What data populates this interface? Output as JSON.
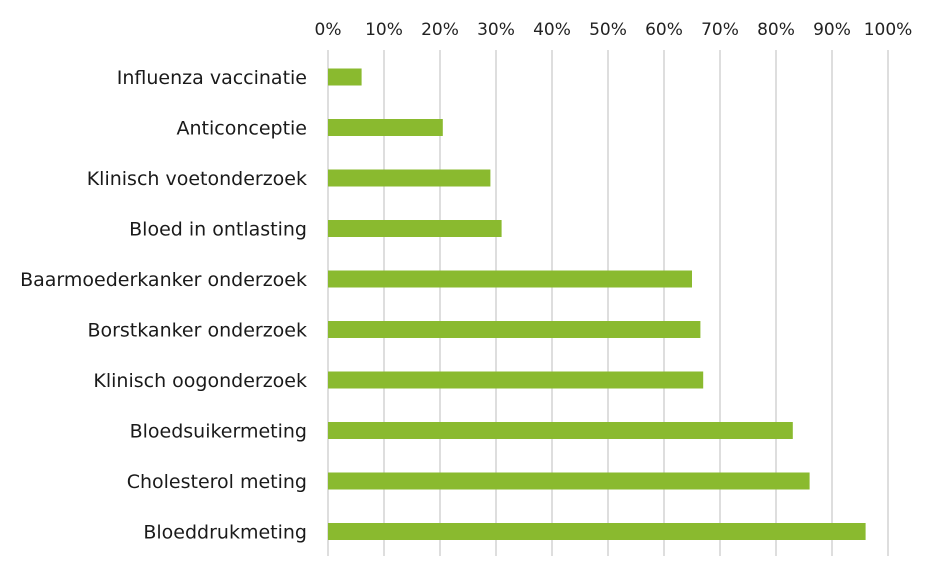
{
  "chart_data": {
    "type": "bar",
    "orientation": "horizontal",
    "categories": [
      "Influenza vaccinatie",
      "Anticonceptie",
      "Klinisch voetonderzoek",
      "Bloed in ontlasting",
      "Baarmoederkanker onderzoek",
      "Borstkanker onderzoek",
      "Klinisch oogonderzoek",
      "Bloedsuikermeting",
      "Cholesterol meting",
      "Bloeddrukmeting"
    ],
    "values": [
      6,
      20.5,
      29,
      31,
      65,
      66.5,
      67,
      83,
      86,
      96
    ],
    "xlim": [
      0,
      100
    ],
    "xticks": [
      "0%",
      "10%",
      "20%",
      "30%",
      "40%",
      "50%",
      "60%",
      "70%",
      "80%",
      "90%",
      "100%"
    ],
    "x_axis_position": "top",
    "grid": "vertical",
    "legend": "none",
    "bar_color": "#8aba2f",
    "grid_color": "#d4d4d4",
    "text_color": "#1a1a1a"
  }
}
